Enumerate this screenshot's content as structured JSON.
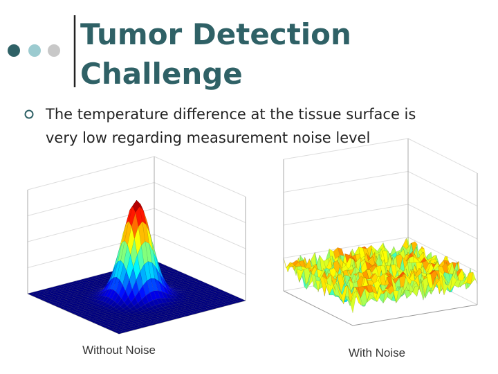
{
  "title": {
    "line1": "Tumor Detection",
    "line2": "Challenge"
  },
  "bullet": {
    "line1": "The temperature difference at the tissue surface is",
    "line2": "very low regarding measurement noise level"
  },
  "figures": [
    {
      "caption": "Without Noise"
    },
    {
      "caption": "With Noise"
    }
  ]
}
